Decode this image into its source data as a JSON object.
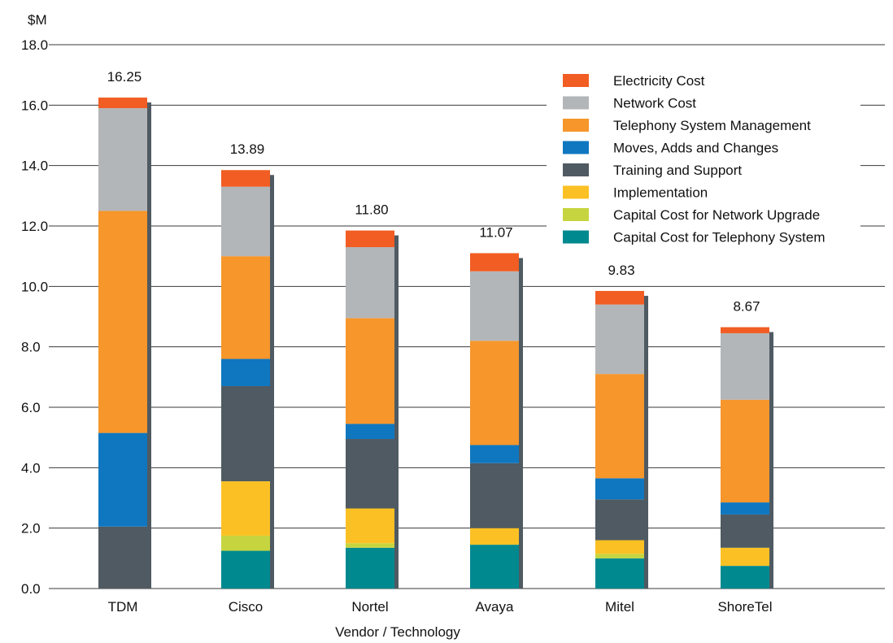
{
  "chart_data": {
    "type": "bar",
    "stacked": true,
    "unit_label": "$M",
    "xlabel": "Vendor / Technology",
    "ylabel": "",
    "ylim": [
      0,
      18
    ],
    "yticks": [
      "0.0",
      "2.0",
      "4.0",
      "6.0",
      "8.0",
      "10.0",
      "12.0",
      "14.0",
      "16.0",
      "18.0"
    ],
    "grid": true,
    "legend_position": "top-right",
    "categories": [
      "TDM",
      "Cisco",
      "Nortel",
      "Avaya",
      "Mitel",
      "ShoreTel"
    ],
    "totals": [
      "16.25",
      "13.89",
      "11.80",
      "11.07",
      "9.83",
      "8.67"
    ],
    "series": [
      {
        "name": "Capital Cost for Telephony System",
        "color": "#00898f",
        "values": [
          0,
          1.25,
          1.35,
          1.45,
          1.0,
          0.75
        ]
      },
      {
        "name": "Capital Cost for Network Upgrade",
        "color": "#c6d53f",
        "values": [
          0,
          0.5,
          0.15,
          0,
          0.15,
          0
        ]
      },
      {
        "name": "Implementation",
        "color": "#fbc124",
        "values": [
          0,
          1.8,
          1.15,
          0.55,
          0.45,
          0.6
        ]
      },
      {
        "name": "Training and Support",
        "color": "#4f5a62",
        "values": [
          2.05,
          3.15,
          2.3,
          2.15,
          1.35,
          1.1
        ]
      },
      {
        "name": "Moves, Adds and Changes",
        "color": "#0f77c0",
        "values": [
          3.1,
          0.9,
          0.5,
          0.6,
          0.7,
          0.4
        ]
      },
      {
        "name": "Telephony System Management",
        "color": "#f6962b",
        "values": [
          7.35,
          3.4,
          3.5,
          3.45,
          3.45,
          3.4
        ]
      },
      {
        "name": "Network Cost",
        "color": "#b3b6b9",
        "values": [
          3.4,
          2.3,
          2.35,
          2.3,
          2.3,
          2.2
        ]
      },
      {
        "name": "Electricity Cost",
        "color": "#f15d23",
        "values": [
          0.35,
          0.55,
          0.55,
          0.6,
          0.45,
          0.2
        ]
      }
    ]
  }
}
